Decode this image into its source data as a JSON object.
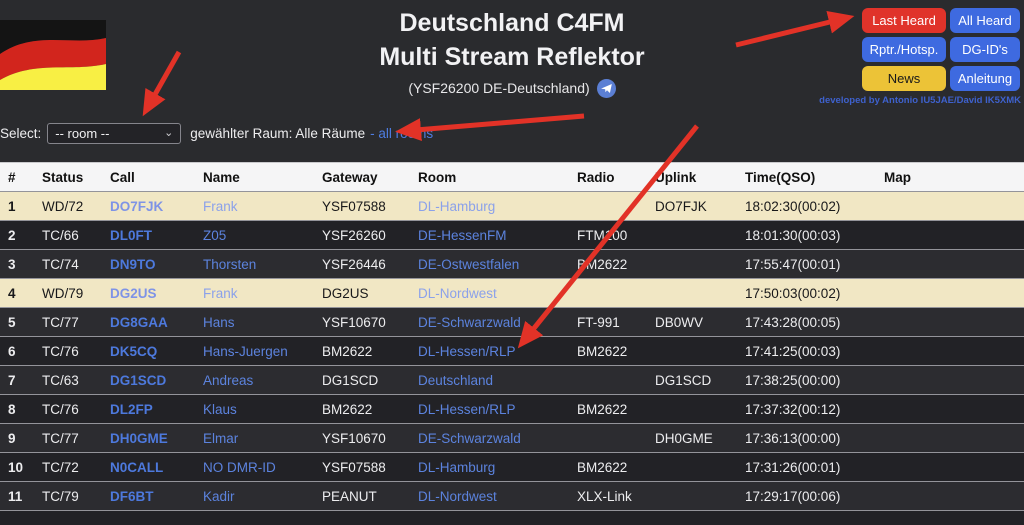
{
  "header": {
    "title_line1": "Deutschland C4FM",
    "title_line2": "Multi Stream Reflektor",
    "subtitle": "(YSF26200 DE-Deutschland)",
    "developed_by": "developed by Antonio IU5JAE/David IK5XMK",
    "buttons": [
      {
        "label": "Last Heard",
        "color": "#e0332a",
        "text_color": "#ffffff"
      },
      {
        "label": "All Heard",
        "color": "#3e6ae0",
        "text_color": "#ffffff"
      },
      {
        "label": "Rptr./Hotsp.",
        "color": "#3e6ae0",
        "text_color": "#ffffff"
      },
      {
        "label": "DG-ID's",
        "color": "#3e6ae0",
        "text_color": "#ffffff"
      },
      {
        "label": "News",
        "color": "#ecc337",
        "text_color": "#1a1a1a"
      },
      {
        "label": "Anleitung",
        "color": "#3e6ae0",
        "text_color": "#ffffff"
      }
    ]
  },
  "room_selector": {
    "label": "Select:",
    "selected_option": "-- room --",
    "current_room_text": "gewählter Raum: Alle Räume",
    "all_rooms_link": "- all rooms"
  },
  "table": {
    "columns": [
      "#",
      "Status",
      "Call",
      "Name",
      "Gateway",
      "Room",
      "Radio",
      "Uplink",
      "Time(QSO)",
      "Map"
    ],
    "rows": [
      {
        "num": "1",
        "status": "WD/72",
        "call": "DO7FJK",
        "name": "Frank",
        "gateway": "YSF07588",
        "room": "DL-Hamburg",
        "radio": "",
        "uplink": "DO7FJK",
        "time": "18:02:30(00:02)",
        "map": "",
        "active": true
      },
      {
        "num": "2",
        "status": "TC/66",
        "call": "DL0FT",
        "name": "Z05",
        "gateway": "YSF26260",
        "room": "DE-HessenFM",
        "radio": "FTM100",
        "uplink": "",
        "time": "18:01:30(00:03)",
        "map": "",
        "active": false
      },
      {
        "num": "3",
        "status": "TC/74",
        "call": "DN9TO",
        "name": "Thorsten",
        "gateway": "YSF26446",
        "room": "DE-Ostwestfalen",
        "radio": "BM2622",
        "uplink": "",
        "time": "17:55:47(00:01)",
        "map": "",
        "active": false
      },
      {
        "num": "4",
        "status": "WD/79",
        "call": "DG2US",
        "name": "Frank",
        "gateway": "DG2US",
        "room": "DL-Nordwest",
        "radio": "",
        "uplink": "",
        "time": "17:50:03(00:02)",
        "map": "",
        "active": true
      },
      {
        "num": "5",
        "status": "TC/77",
        "call": "DG8GAA",
        "name": "Hans",
        "gateway": "YSF10670",
        "room": "DE-Schwarzwald",
        "radio": "FT-991",
        "uplink": "DB0WV",
        "time": "17:43:28(00:05)",
        "map": "",
        "active": false
      },
      {
        "num": "6",
        "status": "TC/76",
        "call": "DK5CQ",
        "name": "Hans-Juergen",
        "gateway": "BM2622",
        "room": "DL-Hessen/RLP",
        "radio": "BM2622",
        "uplink": "",
        "time": "17:41:25(00:03)",
        "map": "",
        "active": false
      },
      {
        "num": "7",
        "status": "TC/63",
        "call": "DG1SCD",
        "name": "Andreas",
        "gateway": "DG1SCD",
        "room": "Deutschland",
        "radio": "",
        "uplink": "DG1SCD",
        "time": "17:38:25(00:00)",
        "map": "",
        "active": false
      },
      {
        "num": "8",
        "status": "TC/76",
        "call": "DL2FP",
        "name": "Klaus",
        "gateway": "BM2622",
        "room": "DL-Hessen/RLP",
        "radio": "BM2622",
        "uplink": "",
        "time": "17:37:32(00:12)",
        "map": "",
        "active": false
      },
      {
        "num": "9",
        "status": "TC/77",
        "call": "DH0GME",
        "name": "Elmar",
        "gateway": "YSF10670",
        "room": "DE-Schwarzwald",
        "radio": "",
        "uplink": "DH0GME",
        "time": "17:36:13(00:00)",
        "map": "",
        "active": false
      },
      {
        "num": "10",
        "status": "TC/72",
        "call": "N0CALL",
        "name": "NO DMR-ID",
        "gateway": "YSF07588",
        "room": "DL-Hamburg",
        "radio": "BM2622",
        "uplink": "",
        "time": "17:31:26(00:01)",
        "map": "",
        "active": false
      },
      {
        "num": "11",
        "status": "TC/79",
        "call": "DF6BT",
        "name": "Kadir",
        "gateway": "PEANUT",
        "room": "DL-Nordwest",
        "radio": "XLX-Link",
        "uplink": "",
        "time": "17:29:17(00:06)",
        "map": "",
        "active": false
      }
    ]
  },
  "colors": {
    "page_bg": "#2a2b2e",
    "accent_red": "#e0332a",
    "accent_blue": "#3e6ae0",
    "accent_yellow": "#ecc337",
    "active_row_bg": "#f1e7c4",
    "table_link_blue": "#4d79dd",
    "annotation_arrow": "#e23227",
    "flag_colors": [
      "#141414",
      "#d2251d",
      "#f8ef44"
    ]
  }
}
